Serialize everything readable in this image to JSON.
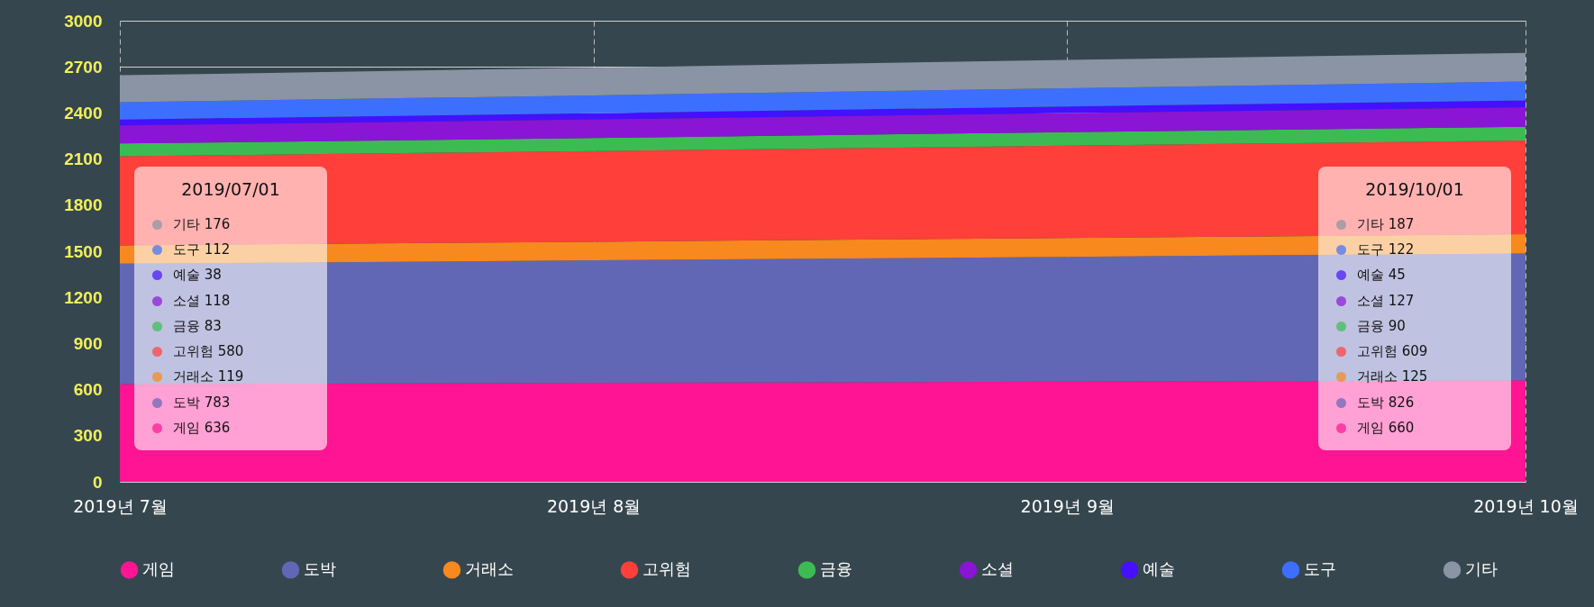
{
  "chart_data": {
    "type": "area",
    "stacked": true,
    "x": [
      "2019-07-01",
      "2019-08-01",
      "2019-09-01",
      "2019-10-01"
    ],
    "xlim": [
      "2019-07-01",
      "2019-10-01"
    ],
    "xticks": [
      {
        "value": "2019-07-01",
        "label": "2019년 7월"
      },
      {
        "value": "2019-08-01",
        "label": "2019년 8월"
      },
      {
        "value": "2019-09-01",
        "label": "2019년 9월"
      },
      {
        "value": "2019-10-01",
        "label": "2019년 10월"
      }
    ],
    "ylim": [
      0,
      3000
    ],
    "yticks": [
      0,
      300,
      600,
      900,
      1200,
      1500,
      1800,
      2100,
      2400,
      2700,
      3000
    ],
    "grid": true,
    "legend": "bottom",
    "series": [
      {
        "name": "게임",
        "color": "#ff1493",
        "values": [
          636,
          644,
          652,
          660
        ],
        "value_labels": [
          "636",
          null,
          null,
          "660"
        ]
      },
      {
        "name": "도박",
        "color": "#6267b5",
        "values": [
          783,
          797,
          812,
          826
        ],
        "value_labels": [
          "783",
          null,
          null,
          "826"
        ]
      },
      {
        "name": "거래소",
        "color": "#f7891e",
        "values": [
          119,
          121,
          123,
          125
        ],
        "value_labels": [
          "119",
          null,
          null,
          "125"
        ]
      },
      {
        "name": "고위험",
        "color": "#ff3f3a",
        "values": [
          580,
          590,
          600,
          609
        ],
        "value_labels": [
          "580",
          null,
          null,
          "609"
        ]
      },
      {
        "name": "금융",
        "color": "#3dbb53",
        "values": [
          83,
          85,
          88,
          90
        ],
        "value_labels": [
          "83",
          null,
          null,
          "90"
        ]
      },
      {
        "name": "소셜",
        "color": "#8a15d4",
        "values": [
          118,
          121,
          124,
          127
        ],
        "value_labels": [
          "118",
          null,
          null,
          "127"
        ]
      },
      {
        "name": "예술",
        "color": "#4410ff",
        "values": [
          38,
          40,
          43,
          45
        ],
        "value_labels": [
          "38",
          null,
          null,
          "45"
        ]
      },
      {
        "name": "도구",
        "color": "#3d6fff",
        "values": [
          112,
          116,
          119,
          122
        ],
        "value_labels": [
          "112",
          null,
          null,
          "122"
        ]
      },
      {
        "name": "기타",
        "color": "#8a94a4",
        "values": [
          176,
          180,
          184,
          187
        ],
        "value_labels": [
          "176",
          null,
          null,
          "187"
        ]
      }
    ],
    "annotations": [
      "2019/07/01",
      "2019/10/01"
    ]
  }
}
